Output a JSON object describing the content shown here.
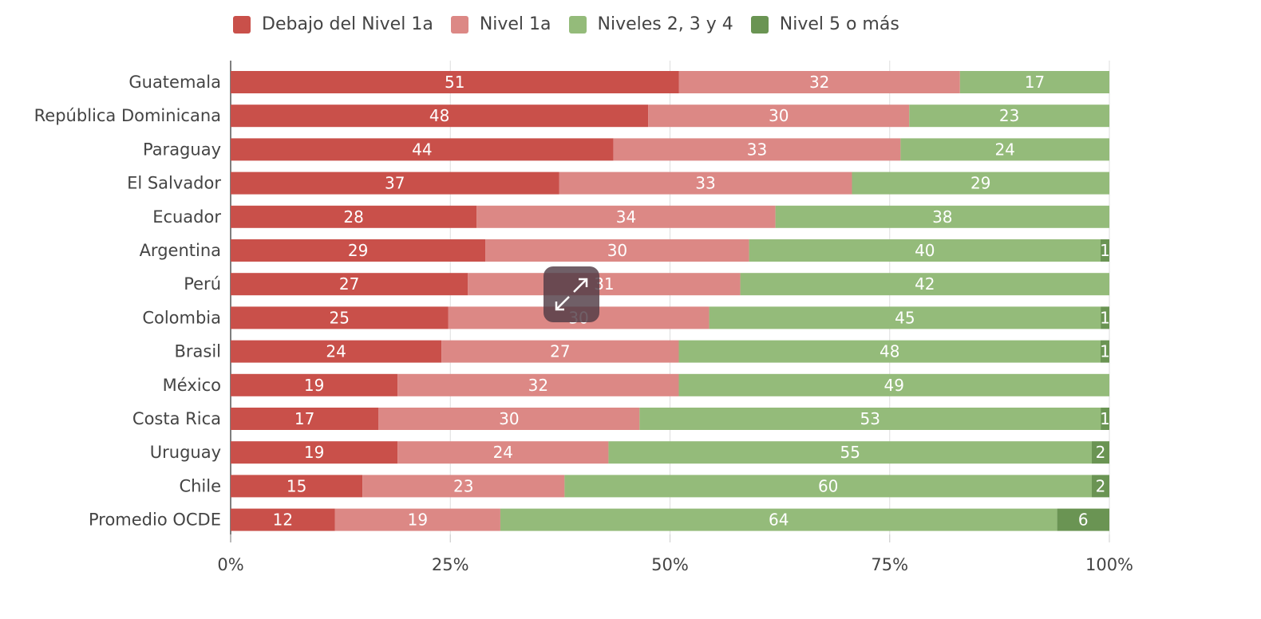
{
  "chart_data": {
    "type": "bar",
    "orientation": "horizontal",
    "stacked": "percent",
    "categories": [
      "Guatemala",
      "República Dominicana",
      "Paraguay",
      "El Salvador",
      "Ecuador",
      "Argentina",
      "Perú",
      "Colombia",
      "Brasil",
      "México",
      "Costa Rica",
      "Uruguay",
      "Chile",
      "Promedio OCDE"
    ],
    "series": [
      {
        "name": "Debajo del Nivel 1a",
        "color": "#c9504a",
        "values": [
          51,
          48,
          44,
          37,
          28,
          29,
          27,
          25,
          24,
          19,
          17,
          19,
          15,
          12
        ]
      },
      {
        "name": "Nivel 1a",
        "color": "#dc8885",
        "values": [
          32,
          30,
          33,
          33,
          34,
          30,
          31,
          30,
          27,
          32,
          30,
          24,
          23,
          19
        ]
      },
      {
        "name": "Niveles 2, 3 y 4",
        "color": "#94bb7a",
        "values": [
          17,
          23,
          24,
          29,
          38,
          40,
          42,
          45,
          48,
          49,
          53,
          55,
          60,
          64
        ]
      },
      {
        "name": "Nivel 5 o más",
        "color": "#6a9453",
        "values": [
          0,
          0,
          0,
          0,
          0,
          1,
          0,
          1,
          1,
          0,
          1,
          2,
          2,
          6
        ]
      }
    ],
    "xticks": [
      "0%",
      "25%",
      "50%",
      "75%",
      "100%"
    ],
    "xlim": [
      0,
      100
    ],
    "grid": true,
    "legend_position": "top"
  },
  "ui": {
    "expand_icon": "expand-arrows-icon"
  }
}
